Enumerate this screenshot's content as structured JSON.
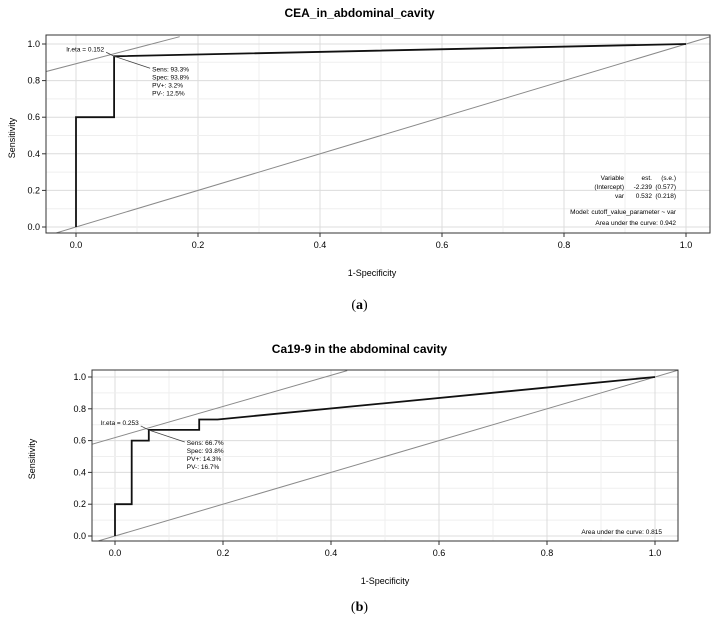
{
  "chart_data": [
    {
      "type": "line",
      "title": "CEA_in_abdominal_cavity",
      "xlabel": "1-Specificity",
      "ylabel": "Sensitivity",
      "xlim": [
        0,
        1
      ],
      "ylim": [
        0,
        1
      ],
      "xticks": [
        "0.0",
        "0.2",
        "0.4",
        "0.6",
        "0.8",
        "1.0"
      ],
      "yticks": [
        "0.0",
        "0.2",
        "0.4",
        "0.6",
        "0.8",
        "1.0"
      ],
      "grid": true,
      "series": [
        {
          "name": "ROC",
          "x": [
            0,
            0,
            0.0625,
            0.0625,
            0.0625,
            1
          ],
          "y": [
            0,
            0.6,
            0.6,
            0.8,
            0.933,
            1
          ]
        }
      ],
      "tangent_line": {
        "x": [
          -0.06,
          0.17
        ],
        "y": [
          0.84,
          1.04
        ]
      },
      "optimal_point": {
        "x": 0.0625,
        "y": 0.933
      },
      "cutoff_label": "lr.eta = 0.152",
      "stats": [
        "Sens: 93.3%",
        "Spec: 93.8%",
        "PV+: 3.2%",
        "PV-: 12.5%"
      ],
      "model_table": {
        "headers": [
          "Variable",
          "est.",
          "(s.e.)"
        ],
        "rows": [
          [
            "(Intercept)",
            "-2.239",
            "(0.577)"
          ],
          [
            "var",
            "0.532",
            "(0.218)"
          ]
        ]
      },
      "model_line": "Model:  cutoff_value_parameter ~ var",
      "auc_line": "Area under the curve: 0.942",
      "caption_label": "a"
    },
    {
      "type": "line",
      "title": "Ca19-9 in the abdominal cavity",
      "xlabel": "1-Specificity",
      "ylabel": "Sensitivity",
      "xlim": [
        0,
        1
      ],
      "ylim": [
        0,
        1
      ],
      "xticks": [
        "0.0",
        "0.2",
        "0.4",
        "0.6",
        "0.8",
        "1.0"
      ],
      "yticks": [
        "0.0",
        "0.2",
        "0.4",
        "0.6",
        "0.8",
        "1.0"
      ],
      "grid": true,
      "series": [
        {
          "name": "ROC",
          "x": [
            0,
            0,
            0.031,
            0.031,
            0.0625,
            0.0625,
            0.156,
            0.156,
            0.19,
            1
          ],
          "y": [
            0,
            0.2,
            0.2,
            0.6,
            0.6,
            0.667,
            0.667,
            0.733,
            0.733,
            1
          ]
        }
      ],
      "tangent_line": {
        "x": [
          -0.06,
          0.43
        ],
        "y": [
          0.56,
          1.04
        ]
      },
      "optimal_point": {
        "x": 0.0625,
        "y": 0.667
      },
      "cutoff_label": "lr.eta = 0.253",
      "stats": [
        "Sens: 66.7%",
        "Spec: 93.8%",
        "PV+: 14.3%",
        "PV-: 16.7%"
      ],
      "auc_line": "Area under the curve: 0.815",
      "caption_label": "b"
    }
  ]
}
